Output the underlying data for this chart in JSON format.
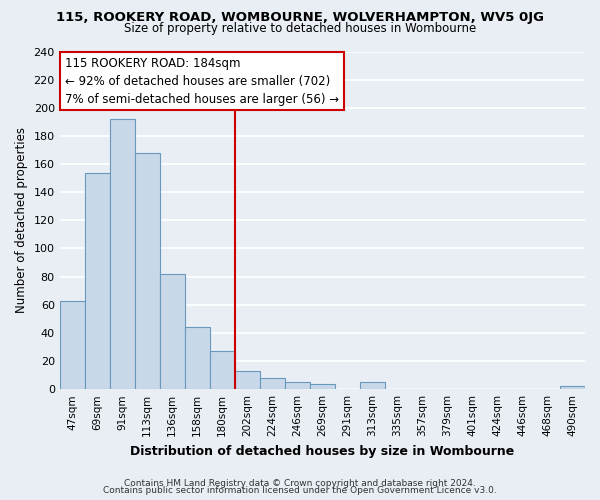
{
  "title_line1": "115, ROOKERY ROAD, WOMBOURNE, WOLVERHAMPTON, WV5 0JG",
  "title_line2": "Size of property relative to detached houses in Wombourne",
  "xlabel": "Distribution of detached houses by size in Wombourne",
  "ylabel": "Number of detached properties",
  "bar_labels": [
    "47sqm",
    "69sqm",
    "91sqm",
    "113sqm",
    "136sqm",
    "158sqm",
    "180sqm",
    "202sqm",
    "224sqm",
    "246sqm",
    "269sqm",
    "291sqm",
    "313sqm",
    "335sqm",
    "357sqm",
    "379sqm",
    "401sqm",
    "424sqm",
    "446sqm",
    "468sqm",
    "490sqm"
  ],
  "bar_values": [
    63,
    154,
    192,
    168,
    82,
    44,
    27,
    13,
    8,
    5,
    4,
    0,
    5,
    0,
    0,
    0,
    0,
    0,
    0,
    0,
    2
  ],
  "bar_color": "#c8d8e8",
  "bar_edge_color": "#6699bb",
  "vline_x": 6.5,
  "vline_color": "#cc0000",
  "annotation_text": "115 ROOKERY ROAD: 184sqm\n← 92% of detached houses are smaller (702)\n7% of semi-detached houses are larger (56) →",
  "annotation_box_color": "#ffffff",
  "annotation_box_edge": "#cc0000",
  "ylim": [
    0,
    240
  ],
  "yticks": [
    0,
    20,
    40,
    60,
    80,
    100,
    120,
    140,
    160,
    180,
    200,
    220,
    240
  ],
  "footer_line1": "Contains HM Land Registry data © Crown copyright and database right 2024.",
  "footer_line2": "Contains public sector information licensed under the Open Government Licence v3.0.",
  "bg_color": "#e8eef4"
}
